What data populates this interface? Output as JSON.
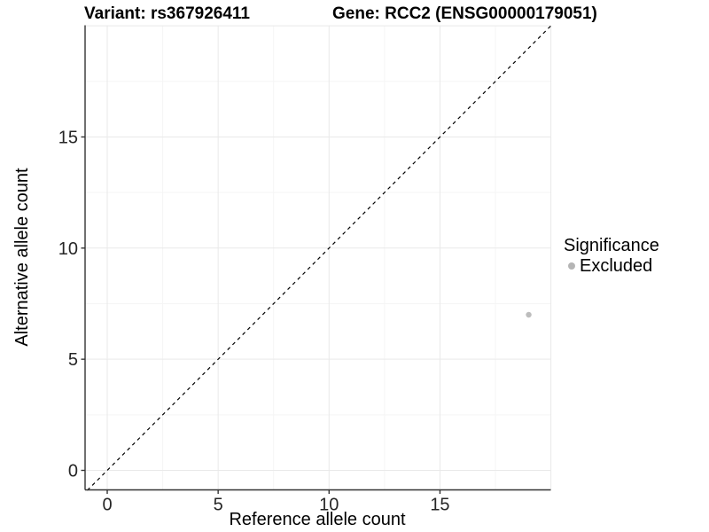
{
  "chart_data": {
    "type": "scatter",
    "title_left": "Variant: rs367926411",
    "title_right": "Gene: RCC2 (ENSG00000179051)",
    "xlabel": "Reference allele count",
    "ylabel": "Alternative allele count",
    "xlim": [
      -0.9,
      20.0
    ],
    "ylim": [
      -0.9,
      20.0
    ],
    "x_ticks": [
      0,
      5,
      10,
      15
    ],
    "y_ticks": [
      0,
      5,
      10,
      15
    ],
    "x_grid_major": [
      0,
      5,
      10,
      15,
      20
    ],
    "x_grid_minor": [
      2.5,
      7.5,
      12.5,
      17.5
    ],
    "y_grid_major": [
      0,
      5,
      10,
      15,
      20
    ],
    "y_grid_minor": [
      2.5,
      7.5,
      12.5,
      17.5
    ],
    "points": [
      {
        "x": 19,
        "y": 7,
        "series": "Excluded"
      }
    ],
    "reference_line": {
      "type": "identity",
      "style": "dashed",
      "from": -0.9,
      "to": 20.0
    },
    "legend": {
      "title": "Significance",
      "position": "right",
      "items": [
        {
          "label": "Excluded",
          "color": "#b5b5b5"
        }
      ]
    },
    "grid": true,
    "colors": {
      "point": "#bdbdbd",
      "grid_major": "#e9e9e9",
      "grid_minor": "#f5f5f5",
      "axis_line": "#333333",
      "tick_mark": "#333333",
      "tick_label": "#262626",
      "dashed_line": "#000000",
      "background": "#ffffff"
    }
  }
}
